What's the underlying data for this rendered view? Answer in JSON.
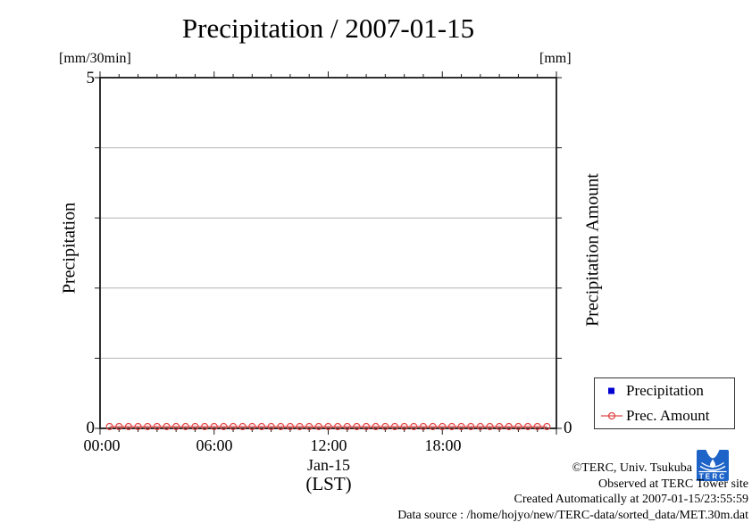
{
  "title": "Precipitation / 2007-01-15",
  "axes": {
    "left_unit": "[mm/30min]",
    "right_unit": "[mm]",
    "left_label": "Precipitation",
    "right_label": "Precipitation Amount",
    "left_top_tick": "5",
    "left_bottom_tick": "0",
    "right_bottom_tick": "0",
    "x_ticks": [
      "00:00",
      "06:00",
      "12:00",
      "18:00"
    ],
    "x_date_label": "Jan-15",
    "x_tz_label": "(LST)"
  },
  "legend": {
    "items": [
      {
        "label": "Precipitation",
        "marker": "square-filled-icon",
        "color": "#0000d0"
      },
      {
        "label": "Prec. Amount",
        "marker": "circle-open-on-line-icon",
        "color": "#e04848"
      }
    ]
  },
  "footer": {
    "line1": "©TERC, Univ. Tsukuba",
    "line2": "Observed at TERC Tower site",
    "line3": "Created Automatically at 2007-01-15/23:55:59",
    "line4": "Data source : /home/hojyo/new/TERC-data/sorted_data/MET.30m.dat",
    "logo_text": "TERC"
  },
  "colors": {
    "axis": "#1a1a1a",
    "grid": "#b4b4b4",
    "red_series": "#e04848",
    "blue_series": "#0000d0",
    "logo_blue": "#1e64c8"
  },
  "chart_data": {
    "type": "line",
    "title": "Precipitation / 2007-01-15",
    "xlabel": "Jan-15 (LST)",
    "xlim_hours": [
      0,
      24
    ],
    "x_tick_hours": [
      0,
      6,
      12,
      18
    ],
    "x_tick_labels": [
      "00:00",
      "06:00",
      "12:00",
      "18:00"
    ],
    "minor_x_tick_every_hours": 1,
    "major_x_tick_every_hours": 6,
    "ylim_left": [
      0,
      5
    ],
    "left_axis_label": "Precipitation [mm/30min]",
    "right_axis_label": "Precipitation Amount [mm]",
    "right_axis_bottom_value": 0,
    "y_gridlines": [
      1,
      2,
      3,
      4
    ],
    "grid": true,
    "legend_position": "outside-bottom-right",
    "series": [
      {
        "name": "Precipitation",
        "marker": "filled-square",
        "color": "#0000d0",
        "visible_points": 0,
        "values": []
      },
      {
        "name": "Prec. Amount",
        "marker": "open-circle",
        "style": "line-with-points",
        "color": "#e04848",
        "x_start_hour": 0.5,
        "x_step_hours": 0.5,
        "values": [
          0,
          0,
          0,
          0,
          0,
          0,
          0,
          0,
          0,
          0,
          0,
          0,
          0,
          0,
          0,
          0,
          0,
          0,
          0,
          0,
          0,
          0,
          0,
          0,
          0,
          0,
          0,
          0,
          0,
          0,
          0,
          0,
          0,
          0,
          0,
          0,
          0,
          0,
          0,
          0,
          0,
          0,
          0,
          0,
          0,
          0,
          0
        ]
      }
    ]
  }
}
